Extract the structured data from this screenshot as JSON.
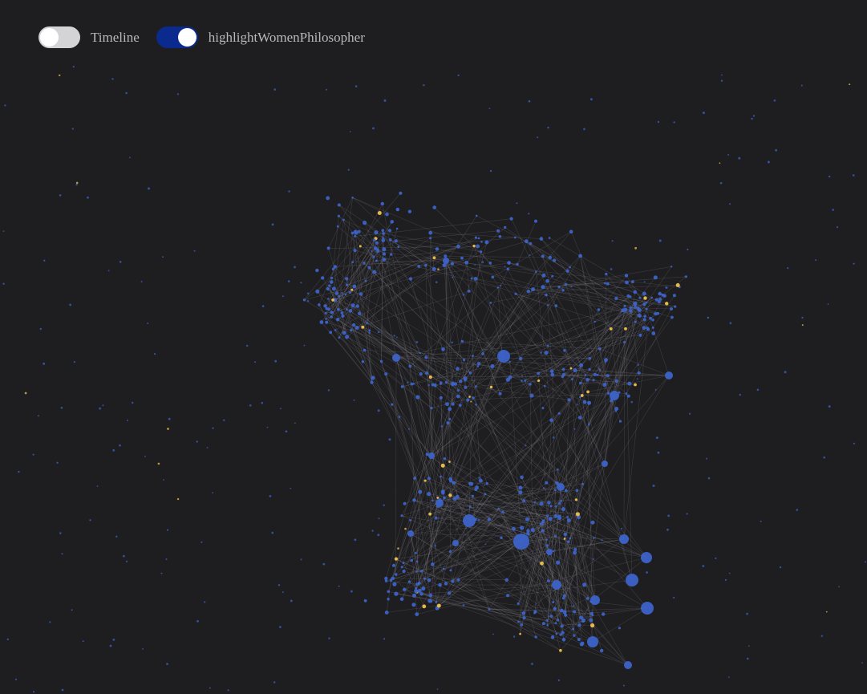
{
  "controls": {
    "timeline_toggle": {
      "label": "Timeline",
      "on": false
    },
    "highlight_toggle": {
      "label": "highlightWomenPhilosopher",
      "on": true
    }
  },
  "colors": {
    "background": "#1e1e20",
    "node": "#3d63c9",
    "highlight_node": "#f0c24a",
    "edge": "#8a8a92",
    "toggle_on": "#0b2a8e",
    "toggle_off": "#d4d4d6",
    "label": "#b9b9bd"
  },
  "graph": {
    "type": "force-directed network",
    "highlight_mode": "women philosophers"
  }
}
